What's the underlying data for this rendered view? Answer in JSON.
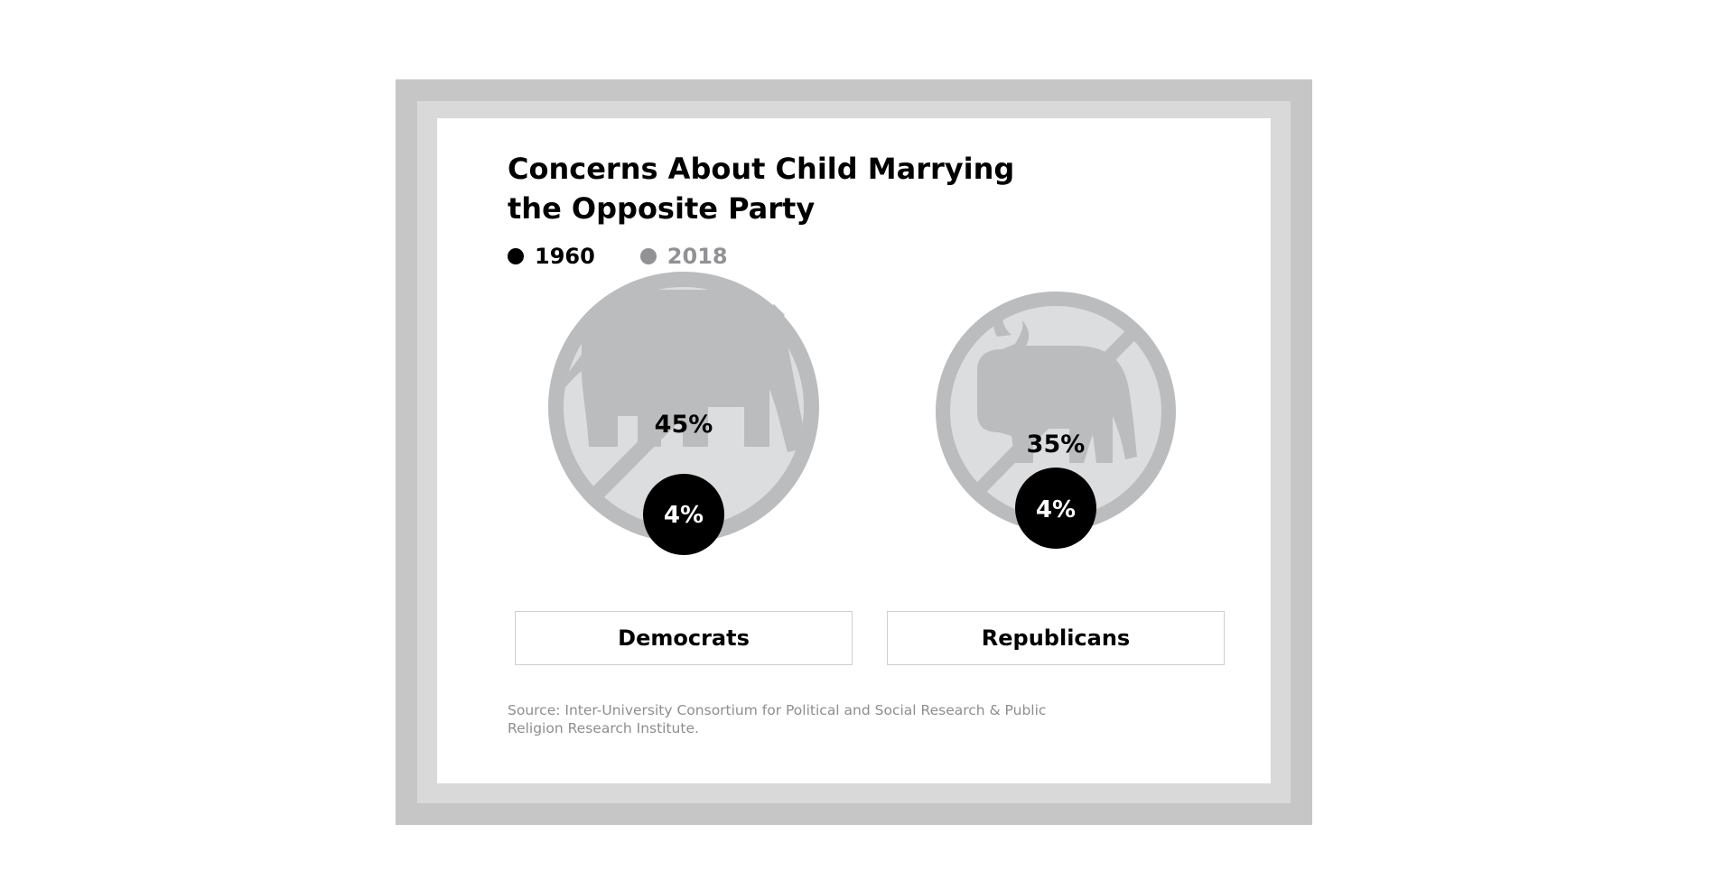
{
  "colors": {
    "series_1960": "#000000",
    "series_2018": "#929295",
    "ring": "#bbbcbe",
    "inner": "#dcdddf",
    "icon": "#bbbcbe"
  },
  "chart_data": {
    "type": "bubble",
    "title": "Concerns About Child Marrying the Opposite Party",
    "series": [
      {
        "name": "1960",
        "values": [
          4,
          4
        ]
      },
      {
        "name": "2018",
        "values": [
          45,
          35
        ]
      }
    ],
    "categories": [
      "Democrats",
      "Republicans"
    ],
    "value_labels": {
      "1960": [
        "4%",
        "4%"
      ],
      "2018": [
        "45%",
        "35%"
      ]
    },
    "icons": [
      "elephant-icon",
      "donkey-icon"
    ],
    "legend_position": "top-left",
    "source": "Source: Inter-University Consortium for Political and Social Research & Public Religion Research Institute."
  }
}
